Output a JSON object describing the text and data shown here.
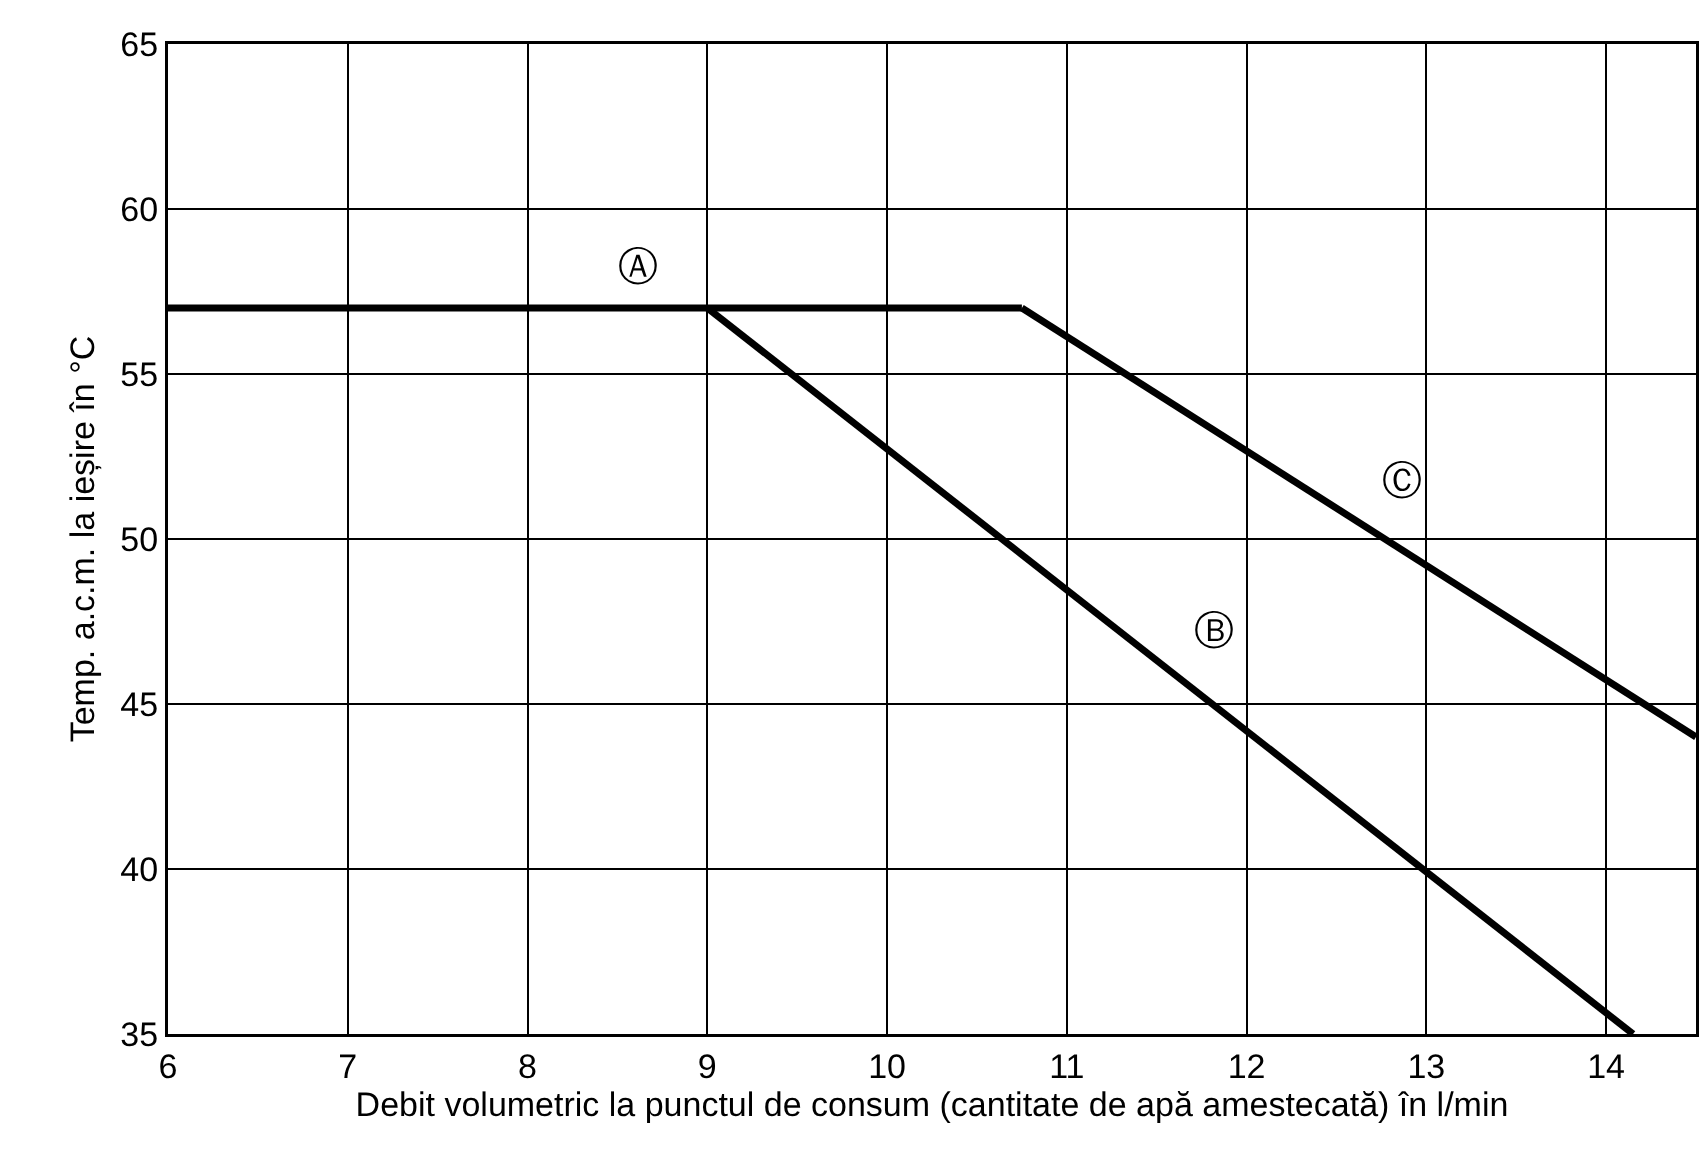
{
  "chart_data": {
    "type": "line",
    "xlabel": "Debit volumetric la punctul de consum (cantitate de apă amestecată) în l/min",
    "ylabel": "Temp. a.c.m. la ieșire în °C",
    "xlim": [
      6,
      14.5
    ],
    "xticks": [
      6,
      7,
      8,
      9,
      10,
      11,
      12,
      13,
      14
    ],
    "ylim": [
      35,
      65
    ],
    "yticks": [
      35,
      40,
      45,
      50,
      55,
      60,
      65
    ],
    "grid": true,
    "line_style": "solid",
    "marker": "none",
    "series": [
      {
        "name": "Ⓐ",
        "color": "#000000",
        "x": [
          6,
          10.75
        ],
        "values": [
          57,
          57
        ]
      },
      {
        "name": "Ⓑ",
        "color": "#000000",
        "x": [
          9,
          14.15
        ],
        "values": [
          57,
          35
        ]
      },
      {
        "name": "Ⓒ",
        "color": "#000000",
        "x": [
          10.75,
          14.5
        ],
        "values": [
          57,
          44
        ]
      }
    ]
  }
}
